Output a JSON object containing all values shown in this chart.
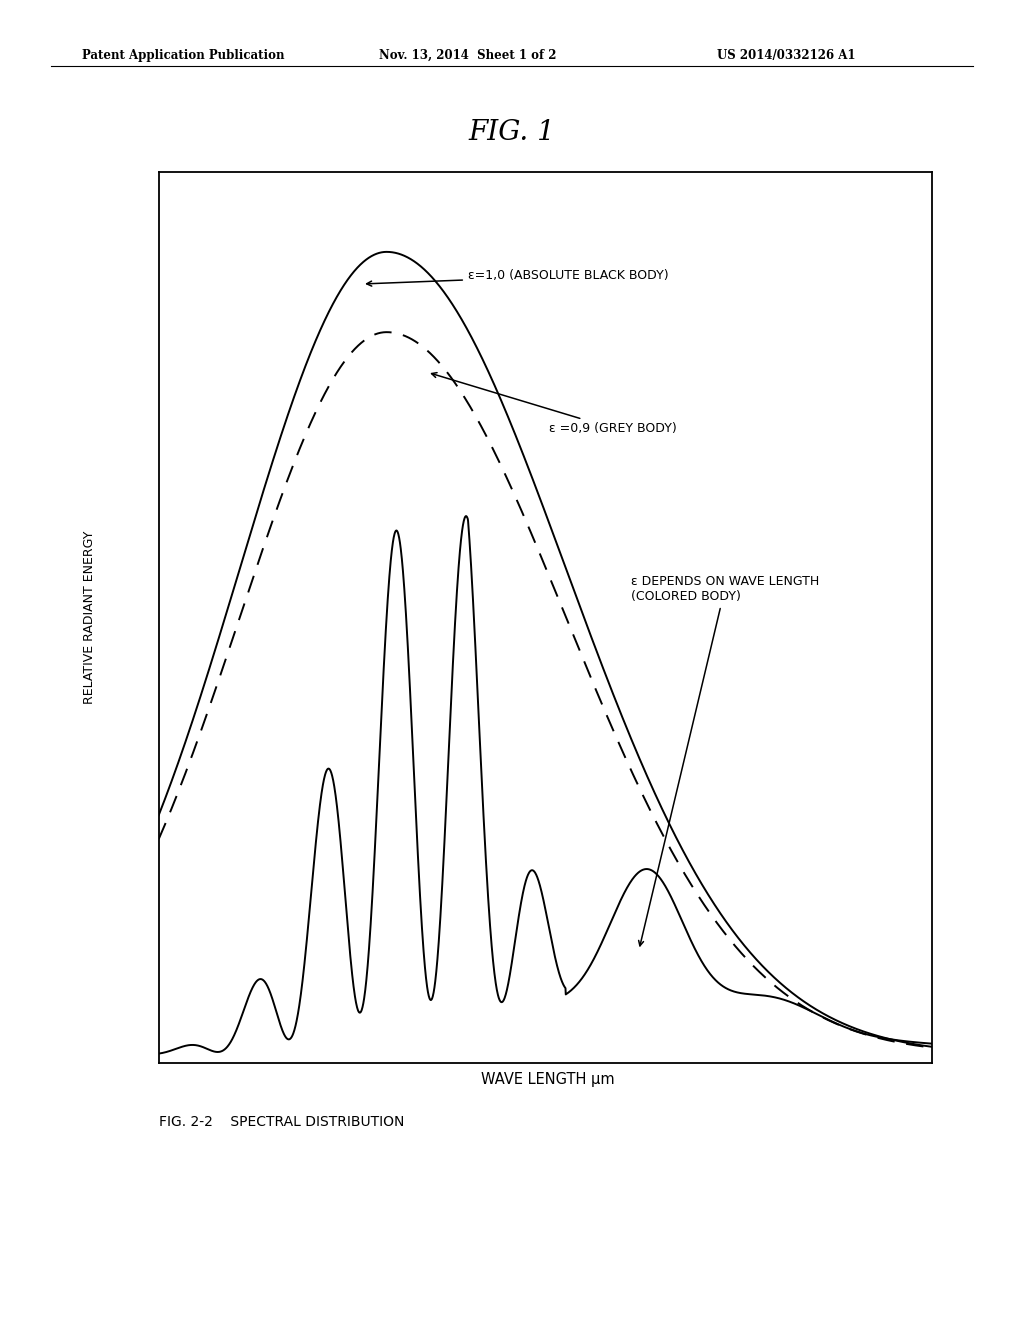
{
  "title": "FIG. 1",
  "header_left": "Patent Application Publication",
  "header_mid": "Nov. 13, 2014  Sheet 1 of 2",
  "header_right": "US 2014/0332126 A1",
  "ylabel": "RELATIVE RADIANT ENERGY",
  "xlabel": "WAVE LENGTH μm",
  "caption": "FIG. 2-2    SPECTRAL DISTRIBUTION",
  "label_black_body": "ε=1,0 (ABSOLUTE BLACK BODY)",
  "label_grey_body": "ε =0,9 (GREY BODY)",
  "label_colored_body": "ε DEPENDS ON WAVE LENGTH\n(COLORED BODY)",
  "bg_color": "#ffffff",
  "line_color": "#000000"
}
